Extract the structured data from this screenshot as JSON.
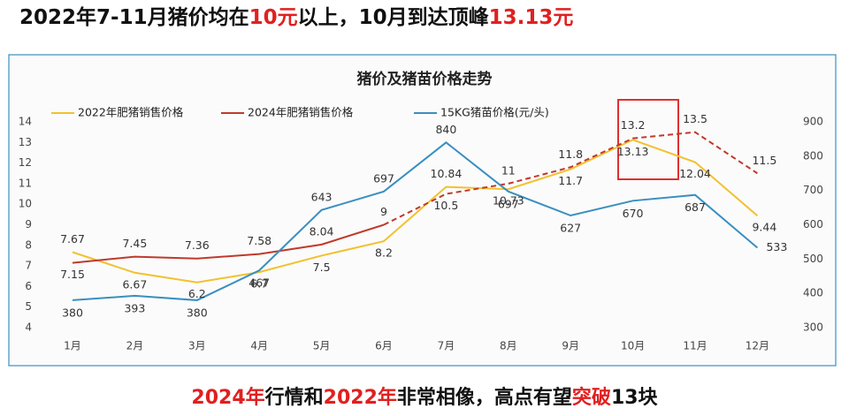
{
  "headline": [
    {
      "text": "2022年7-11月猪价均在",
      "color": "#111111"
    },
    {
      "text": "10元",
      "color": "#e02020"
    },
    {
      "text": "以上，10月到达顶峰",
      "color": "#111111"
    },
    {
      "text": "13.13元",
      "color": "#e02020"
    }
  ],
  "footer": [
    {
      "text": "2024年",
      "color": "#e02020"
    },
    {
      "text": "行情和",
      "color": "#111111"
    },
    {
      "text": "2022年",
      "color": "#e02020"
    },
    {
      "text": "非常相像，高点有望",
      "color": "#111111"
    },
    {
      "text": "突破",
      "color": "#e02020"
    },
    {
      "text": "13块",
      "color": "#111111"
    }
  ],
  "chart_data": {
    "type": "line",
    "title": "猪价及猪苗价格走势",
    "categories": [
      "1月",
      "2月",
      "3月",
      "4月",
      "5月",
      "6月",
      "7月",
      "8月",
      "9月",
      "10月",
      "11月",
      "12月"
    ],
    "series": [
      {
        "name": "2022年肥猪销售价格",
        "color": "#f2c12e",
        "values": [
          7.67,
          6.67,
          6.2,
          6.7,
          7.5,
          8.2,
          10.84,
          10.73,
          11.7,
          13.13,
          12.04,
          9.44
        ]
      },
      {
        "name": "2024年肥猪销售价格",
        "color": "#c0392b",
        "values": [
          7.15,
          7.45,
          7.36,
          7.58,
          8.04,
          9,
          10.5,
          11,
          11.8,
          13.2,
          13.5,
          11.5
        ],
        "dashed_from": 5
      },
      {
        "name": "15KG猪苗价格(元/头)",
        "color": "#3a8fc0",
        "axis": "y2",
        "values": [
          380,
          393,
          380,
          467,
          643,
          697,
          840,
          697,
          627,
          670,
          687,
          533
        ]
      }
    ],
    "ylim": [
      4,
      14
    ],
    "yticks": [
      4,
      5,
      6,
      7,
      8,
      9,
      10,
      11,
      12,
      13,
      14
    ],
    "y2lim": [
      300,
      900
    ],
    "y2ticks": [
      300,
      400,
      500,
      600,
      700,
      800,
      900
    ],
    "grid": false
  }
}
